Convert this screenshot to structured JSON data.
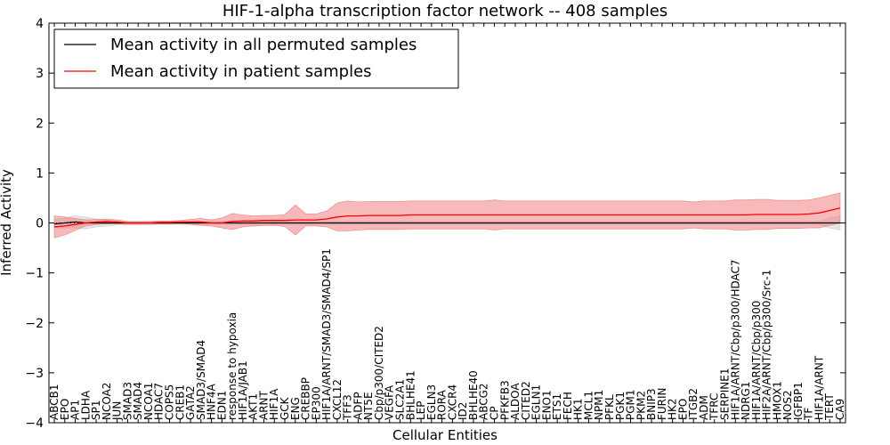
{
  "chart_data": {
    "type": "line",
    "title": "HIF-1-alpha transcription factor network -- 408 samples",
    "xlabel": "Cellular Entities",
    "ylabel": "Inferred Activity",
    "ylim": [
      -4,
      4
    ],
    "yticks": [
      -4,
      -3,
      -2,
      -1,
      0,
      1,
      2,
      3,
      4
    ],
    "legend_position": "top-left",
    "categories": [
      "ABCB1",
      "EPO",
      "AP1",
      "LDHA",
      "SP1",
      "NCOA2",
      "JUN",
      "SMAD3",
      "SMAD4",
      "NCOA1",
      "HDAC7",
      "COPS5",
      "CREB1",
      "GATA2",
      "SMAD3/SMAD4",
      "HNF4A",
      "EDN1",
      "response to hypoxia",
      "HIF1A/JAB1",
      "AKT1",
      "ARNT",
      "HIF1A",
      "GCK",
      "ENG",
      "CREBBP",
      "EP300",
      "HIF1A/ARNT/SMAD3/SMAD4/SP1",
      "CXCL12",
      "TFF3",
      "ADFP",
      "NT5E",
      "Cbp/p300/CITED2",
      "VEGFA",
      "SLC2A1",
      "BHLHE41",
      "LEP",
      "EGLN3",
      "RORA",
      "CXCR4",
      "ID2",
      "BHLHE40",
      "ABCG2",
      "CP",
      "PFKFB3",
      "ALDOA",
      "CITED2",
      "EGLN1",
      "ENO1",
      "ETS1",
      "FECH",
      "HK1",
      "MCL1",
      "NPM1",
      "PFKL",
      "PGK1",
      "PGM1",
      "PKM2",
      "BNIP3",
      "FURIN",
      "HK2",
      "EPO",
      "ITGB2",
      "ADM",
      "TFRC",
      "SERPINE1",
      "HIF1A/ARNT/Cbp/p300/HDAC7",
      "NDRG1",
      "HIF1A/ARNT/Cbp/p300",
      "HIF2A/ARNT/Cbp/p300/Src-1",
      "HMOX1",
      "NOS2",
      "IGFBP1",
      "TF",
      "HIF1A/ARNT",
      "TERT",
      "CA9"
    ],
    "series": [
      {
        "name": "Mean activity in all permuted samples",
        "color": "#000000",
        "band_color": "#cccccc",
        "values": [
          -0.02,
          0.0,
          0.02,
          0.0,
          0.0,
          0.0,
          0.0,
          0.0,
          0.0,
          0.0,
          0.0,
          0.0,
          0.0,
          0.0,
          0.0,
          0.0,
          0.0,
          0.0,
          0.0,
          0.0,
          0.0,
          0.0,
          0.0,
          0.0,
          0.0,
          0.0,
          0.0,
          0.0,
          0.0,
          0.0,
          0.0,
          0.0,
          0.0,
          0.0,
          0.0,
          0.0,
          0.0,
          0.0,
          0.0,
          0.0,
          0.0,
          0.0,
          0.0,
          0.0,
          0.0,
          0.0,
          0.0,
          0.0,
          0.0,
          0.0,
          0.0,
          0.0,
          0.0,
          0.0,
          0.0,
          0.0,
          0.0,
          0.0,
          0.0,
          0.0,
          0.0,
          0.0,
          0.0,
          0.0,
          0.0,
          0.0,
          0.0,
          0.0,
          0.0,
          0.0,
          0.0,
          0.0,
          0.0,
          0.0,
          0.0,
          0.0
        ],
        "band": [
          0.08,
          0.1,
          0.12,
          0.12,
          0.08,
          0.06,
          0.04,
          0.03,
          0.03,
          0.03,
          0.03,
          0.03,
          0.03,
          0.03,
          0.03,
          0.03,
          0.03,
          0.03,
          0.03,
          0.03,
          0.03,
          0.03,
          0.03,
          0.03,
          0.03,
          0.03,
          0.03,
          0.03,
          0.03,
          0.03,
          0.03,
          0.03,
          0.03,
          0.03,
          0.03,
          0.03,
          0.03,
          0.03,
          0.03,
          0.03,
          0.03,
          0.03,
          0.03,
          0.03,
          0.03,
          0.03,
          0.03,
          0.03,
          0.03,
          0.03,
          0.03,
          0.03,
          0.03,
          0.03,
          0.03,
          0.03,
          0.03,
          0.03,
          0.03,
          0.03,
          0.03,
          0.03,
          0.03,
          0.03,
          0.03,
          0.03,
          0.03,
          0.03,
          0.03,
          0.03,
          0.03,
          0.03,
          0.03,
          0.03,
          0.1,
          0.14
        ]
      },
      {
        "name": "Mean activity in patient samples",
        "color": "#ff0000",
        "band_color": "#f08080",
        "values": [
          -0.08,
          -0.06,
          -0.03,
          0.0,
          0.02,
          0.03,
          0.02,
          0.0,
          0.0,
          0.0,
          0.01,
          0.01,
          0.02,
          0.02,
          0.02,
          0.0,
          0.0,
          0.03,
          0.04,
          0.04,
          0.05,
          0.05,
          0.05,
          0.06,
          0.06,
          0.06,
          0.08,
          0.12,
          0.14,
          0.14,
          0.15,
          0.15,
          0.15,
          0.15,
          0.16,
          0.16,
          0.16,
          0.16,
          0.16,
          0.16,
          0.16,
          0.16,
          0.16,
          0.16,
          0.16,
          0.16,
          0.16,
          0.16,
          0.16,
          0.16,
          0.16,
          0.16,
          0.16,
          0.16,
          0.16,
          0.16,
          0.16,
          0.16,
          0.16,
          0.16,
          0.16,
          0.16,
          0.16,
          0.16,
          0.16,
          0.16,
          0.16,
          0.17,
          0.17,
          0.17,
          0.17,
          0.17,
          0.18,
          0.2,
          0.25,
          0.3
        ],
        "band": [
          0.22,
          0.18,
          0.12,
          0.06,
          0.05,
          0.05,
          0.04,
          0.03,
          0.03,
          0.03,
          0.03,
          0.03,
          0.03,
          0.05,
          0.07,
          0.06,
          0.1,
          0.16,
          0.12,
          0.1,
          0.1,
          0.1,
          0.12,
          0.3,
          0.12,
          0.12,
          0.16,
          0.28,
          0.3,
          0.28,
          0.28,
          0.28,
          0.28,
          0.28,
          0.28,
          0.28,
          0.28,
          0.28,
          0.28,
          0.28,
          0.28,
          0.28,
          0.3,
          0.28,
          0.28,
          0.28,
          0.28,
          0.28,
          0.28,
          0.28,
          0.28,
          0.28,
          0.28,
          0.28,
          0.28,
          0.28,
          0.28,
          0.28,
          0.28,
          0.28,
          0.28,
          0.26,
          0.28,
          0.28,
          0.28,
          0.3,
          0.3,
          0.3,
          0.3,
          0.28,
          0.28,
          0.28,
          0.28,
          0.3,
          0.3,
          0.3
        ]
      }
    ]
  }
}
